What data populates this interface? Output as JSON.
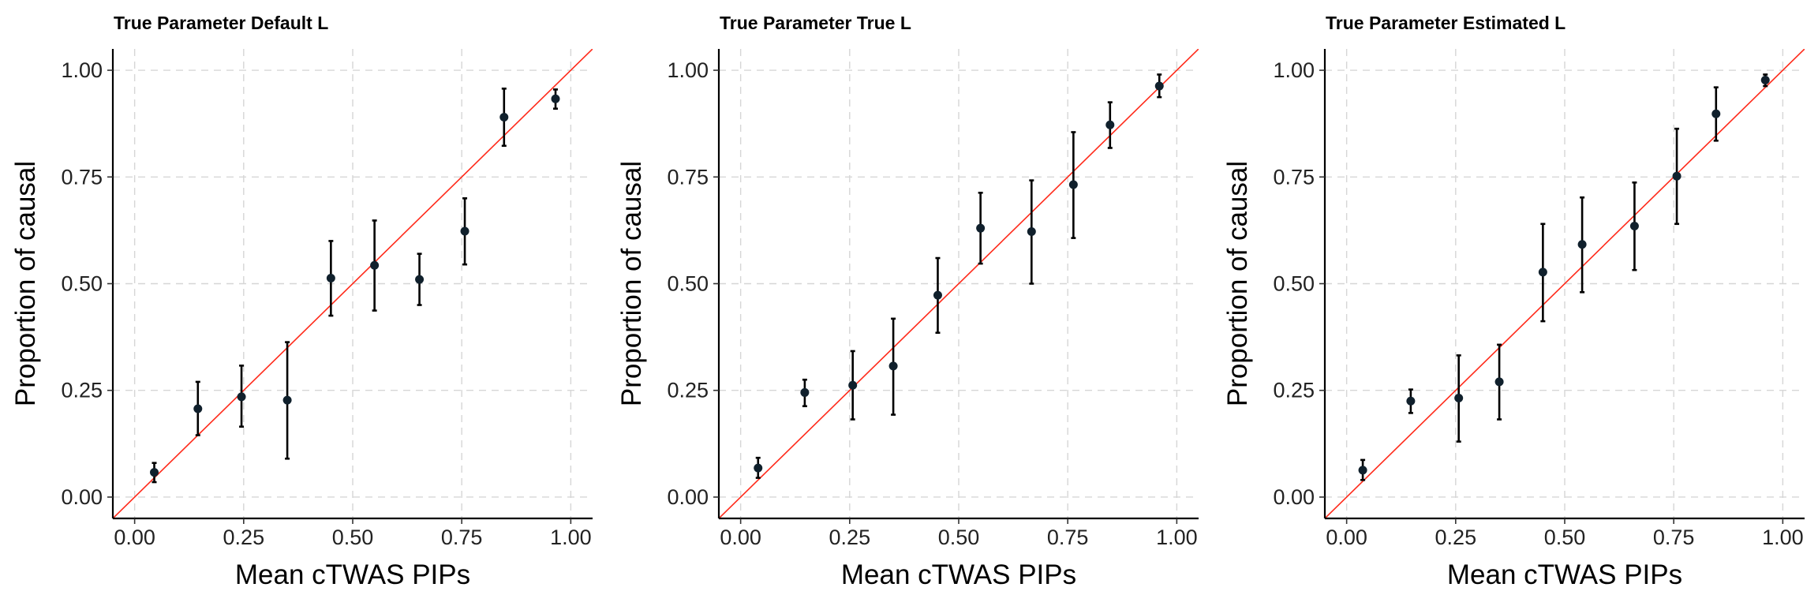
{
  "chart_data": [
    {
      "type": "scatter",
      "title": "True Parameter Default L",
      "xlabel": "Mean cTWAS PIPs",
      "ylabel": "Proportion of causal",
      "xlim": [
        -0.05,
        1.05
      ],
      "ylim": [
        -0.05,
        1.05
      ],
      "xticks": [
        "0.00",
        "0.25",
        "0.50",
        "0.75",
        "1.00"
      ],
      "yticks": [
        "0.00",
        "0.25",
        "0.50",
        "0.75",
        "1.00"
      ],
      "grid": true,
      "reference_line": "y = x",
      "reference_line_color": "#ff2a1a",
      "point_color": "#10202c",
      "points": [
        {
          "x": 0.045,
          "y": 0.058,
          "ymin": 0.035,
          "ymax": 0.08
        },
        {
          "x": 0.145,
          "y": 0.207,
          "ymin": 0.145,
          "ymax": 0.27
        },
        {
          "x": 0.245,
          "y": 0.235,
          "ymin": 0.165,
          "ymax": 0.308
        },
        {
          "x": 0.35,
          "y": 0.227,
          "ymin": 0.09,
          "ymax": 0.363
        },
        {
          "x": 0.45,
          "y": 0.513,
          "ymin": 0.425,
          "ymax": 0.6
        },
        {
          "x": 0.55,
          "y": 0.543,
          "ymin": 0.437,
          "ymax": 0.648
        },
        {
          "x": 0.653,
          "y": 0.51,
          "ymin": 0.45,
          "ymax": 0.57
        },
        {
          "x": 0.757,
          "y": 0.623,
          "ymin": 0.545,
          "ymax": 0.7
        },
        {
          "x": 0.847,
          "y": 0.89,
          "ymin": 0.823,
          "ymax": 0.957
        },
        {
          "x": 0.965,
          "y": 0.933,
          "ymin": 0.91,
          "ymax": 0.955
        }
      ]
    },
    {
      "type": "scatter",
      "title": "True Parameter True L",
      "xlabel": "Mean cTWAS PIPs",
      "ylabel": "Proportion of causal",
      "xlim": [
        -0.05,
        1.05
      ],
      "ylim": [
        -0.05,
        1.05
      ],
      "xticks": [
        "0.00",
        "0.25",
        "0.50",
        "0.75",
        "1.00"
      ],
      "yticks": [
        "0.00",
        "0.25",
        "0.50",
        "0.75",
        "1.00"
      ],
      "grid": true,
      "reference_line": "y = x",
      "reference_line_color": "#ff2a1a",
      "point_color": "#10202c",
      "points": [
        {
          "x": 0.04,
          "y": 0.068,
          "ymin": 0.045,
          "ymax": 0.092
        },
        {
          "x": 0.147,
          "y": 0.245,
          "ymin": 0.213,
          "ymax": 0.275
        },
        {
          "x": 0.257,
          "y": 0.262,
          "ymin": 0.182,
          "ymax": 0.342
        },
        {
          "x": 0.35,
          "y": 0.307,
          "ymin": 0.193,
          "ymax": 0.418
        },
        {
          "x": 0.452,
          "y": 0.473,
          "ymin": 0.385,
          "ymax": 0.56
        },
        {
          "x": 0.55,
          "y": 0.63,
          "ymin": 0.547,
          "ymax": 0.713
        },
        {
          "x": 0.667,
          "y": 0.622,
          "ymin": 0.5,
          "ymax": 0.742
        },
        {
          "x": 0.763,
          "y": 0.732,
          "ymin": 0.607,
          "ymax": 0.855
        },
        {
          "x": 0.847,
          "y": 0.872,
          "ymin": 0.818,
          "ymax": 0.925
        },
        {
          "x": 0.96,
          "y": 0.963,
          "ymin": 0.937,
          "ymax": 0.99
        }
      ]
    },
    {
      "type": "scatter",
      "title": "True Parameter Estimated L",
      "xlabel": "Mean cTWAS PIPs",
      "ylabel": "Proportion of causal",
      "xlim": [
        -0.05,
        1.05
      ],
      "ylim": [
        -0.05,
        1.05
      ],
      "xticks": [
        "0.00",
        "0.25",
        "0.50",
        "0.75",
        "1.00"
      ],
      "yticks": [
        "0.00",
        "0.25",
        "0.50",
        "0.75",
        "1.00"
      ],
      "grid": true,
      "reference_line": "y = x",
      "reference_line_color": "#ff2a1a",
      "point_color": "#10202c",
      "points": [
        {
          "x": 0.037,
          "y": 0.063,
          "ymin": 0.04,
          "ymax": 0.087
        },
        {
          "x": 0.147,
          "y": 0.225,
          "ymin": 0.197,
          "ymax": 0.252
        },
        {
          "x": 0.257,
          "y": 0.232,
          "ymin": 0.13,
          "ymax": 0.332
        },
        {
          "x": 0.35,
          "y": 0.27,
          "ymin": 0.182,
          "ymax": 0.357
        },
        {
          "x": 0.45,
          "y": 0.527,
          "ymin": 0.412,
          "ymax": 0.64
        },
        {
          "x": 0.54,
          "y": 0.592,
          "ymin": 0.48,
          "ymax": 0.702
        },
        {
          "x": 0.66,
          "y": 0.635,
          "ymin": 0.532,
          "ymax": 0.737
        },
        {
          "x": 0.757,
          "y": 0.752,
          "ymin": 0.64,
          "ymax": 0.863
        },
        {
          "x": 0.847,
          "y": 0.898,
          "ymin": 0.835,
          "ymax": 0.96
        },
        {
          "x": 0.96,
          "y": 0.977,
          "ymin": 0.963,
          "ymax": 0.99
        }
      ]
    }
  ]
}
